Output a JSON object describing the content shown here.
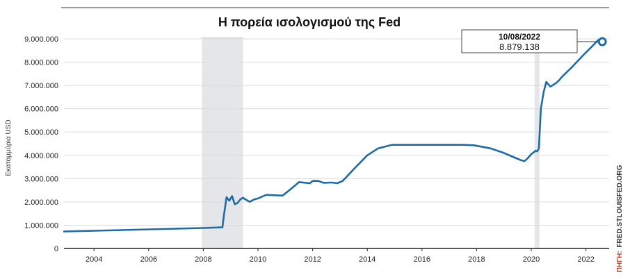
{
  "chart_data": {
    "type": "line",
    "title": "Η πορεία ισολογισμού της Fed",
    "ylabel": "Εκατομμύρια USD",
    "xlabel": "",
    "source_prefix": "ΠΗΓΗ:",
    "source_text": "FRED.STLOUISFED.ORG",
    "ylim": [
      0,
      9000000
    ],
    "xlim": [
      2002.9,
      2022.85
    ],
    "y_ticks": [
      0,
      1000000,
      2000000,
      3000000,
      4000000,
      5000000,
      6000000,
      7000000,
      8000000,
      9000000
    ],
    "y_tick_labels": [
      "0",
      "1.000.000",
      "2.000.000",
      "3.000.000",
      "4.000.000",
      "5.000.000",
      "6.000.000",
      "7.000.000",
      "8.000.000",
      "9.000.000"
    ],
    "x_ticks": [
      2004,
      2006,
      2008,
      2010,
      2012,
      2014,
      2016,
      2018,
      2020,
      2022
    ],
    "x_tick_labels": [
      "2004",
      "2006",
      "2008",
      "2010",
      "2012",
      "2014",
      "2016",
      "2018",
      "2020",
      "2022"
    ],
    "grid": "horizontal",
    "shaded_periods": [
      {
        "start": 2007.95,
        "end": 2009.45
      },
      {
        "start": 2020.12,
        "end": 2020.3
      }
    ],
    "series": [
      {
        "color": "#1f6aa5",
        "x": [
          2002.9,
          2004.0,
          2005.0,
          2006.0,
          2007.0,
          2008.0,
          2008.7,
          2008.75,
          2008.85,
          2008.95,
          2009.05,
          2009.15,
          2009.25,
          2009.35,
          2009.45,
          2009.55,
          2009.7,
          2009.85,
          2010.0,
          2010.3,
          2010.9,
          2011.2,
          2011.5,
          2011.9,
          2012.0,
          2012.2,
          2012.4,
          2012.7,
          2012.9,
          2013.1,
          2013.5,
          2014.0,
          2014.4,
          2014.9,
          2015.5,
          2016.5,
          2017.5,
          2017.9,
          2018.5,
          2019.0,
          2019.3,
          2019.6,
          2019.75,
          2019.85,
          2020.0,
          2020.12,
          2020.15,
          2020.22,
          2020.28,
          2020.35,
          2020.45,
          2020.55,
          2020.7,
          2020.9,
          2021.0,
          2021.15,
          2021.5,
          2021.9,
          2022.2,
          2022.45,
          2022.6
        ],
        "values": [
          730000,
          760000,
          790000,
          820000,
          850000,
          880000,
          910000,
          1400000,
          2200000,
          2050000,
          2250000,
          1900000,
          1950000,
          2100000,
          2180000,
          2100000,
          2000000,
          2100000,
          2150000,
          2300000,
          2270000,
          2550000,
          2850000,
          2800000,
          2900000,
          2900000,
          2820000,
          2830000,
          2800000,
          2900000,
          3400000,
          4000000,
          4300000,
          4450000,
          4450000,
          4450000,
          4450000,
          4430000,
          4300000,
          4100000,
          3950000,
          3800000,
          3750000,
          3850000,
          4050000,
          4150000,
          4200000,
          4170000,
          4300000,
          6000000,
          6700000,
          7150000,
          6950000,
          7100000,
          7200000,
          7400000,
          7800000,
          8300000,
          8650000,
          8950000,
          8879138
        ]
      }
    ],
    "highlight": {
      "x": 2022.6,
      "value": 8879138,
      "date_label": "10/08/2022",
      "value_label": "8.879.138"
    }
  }
}
